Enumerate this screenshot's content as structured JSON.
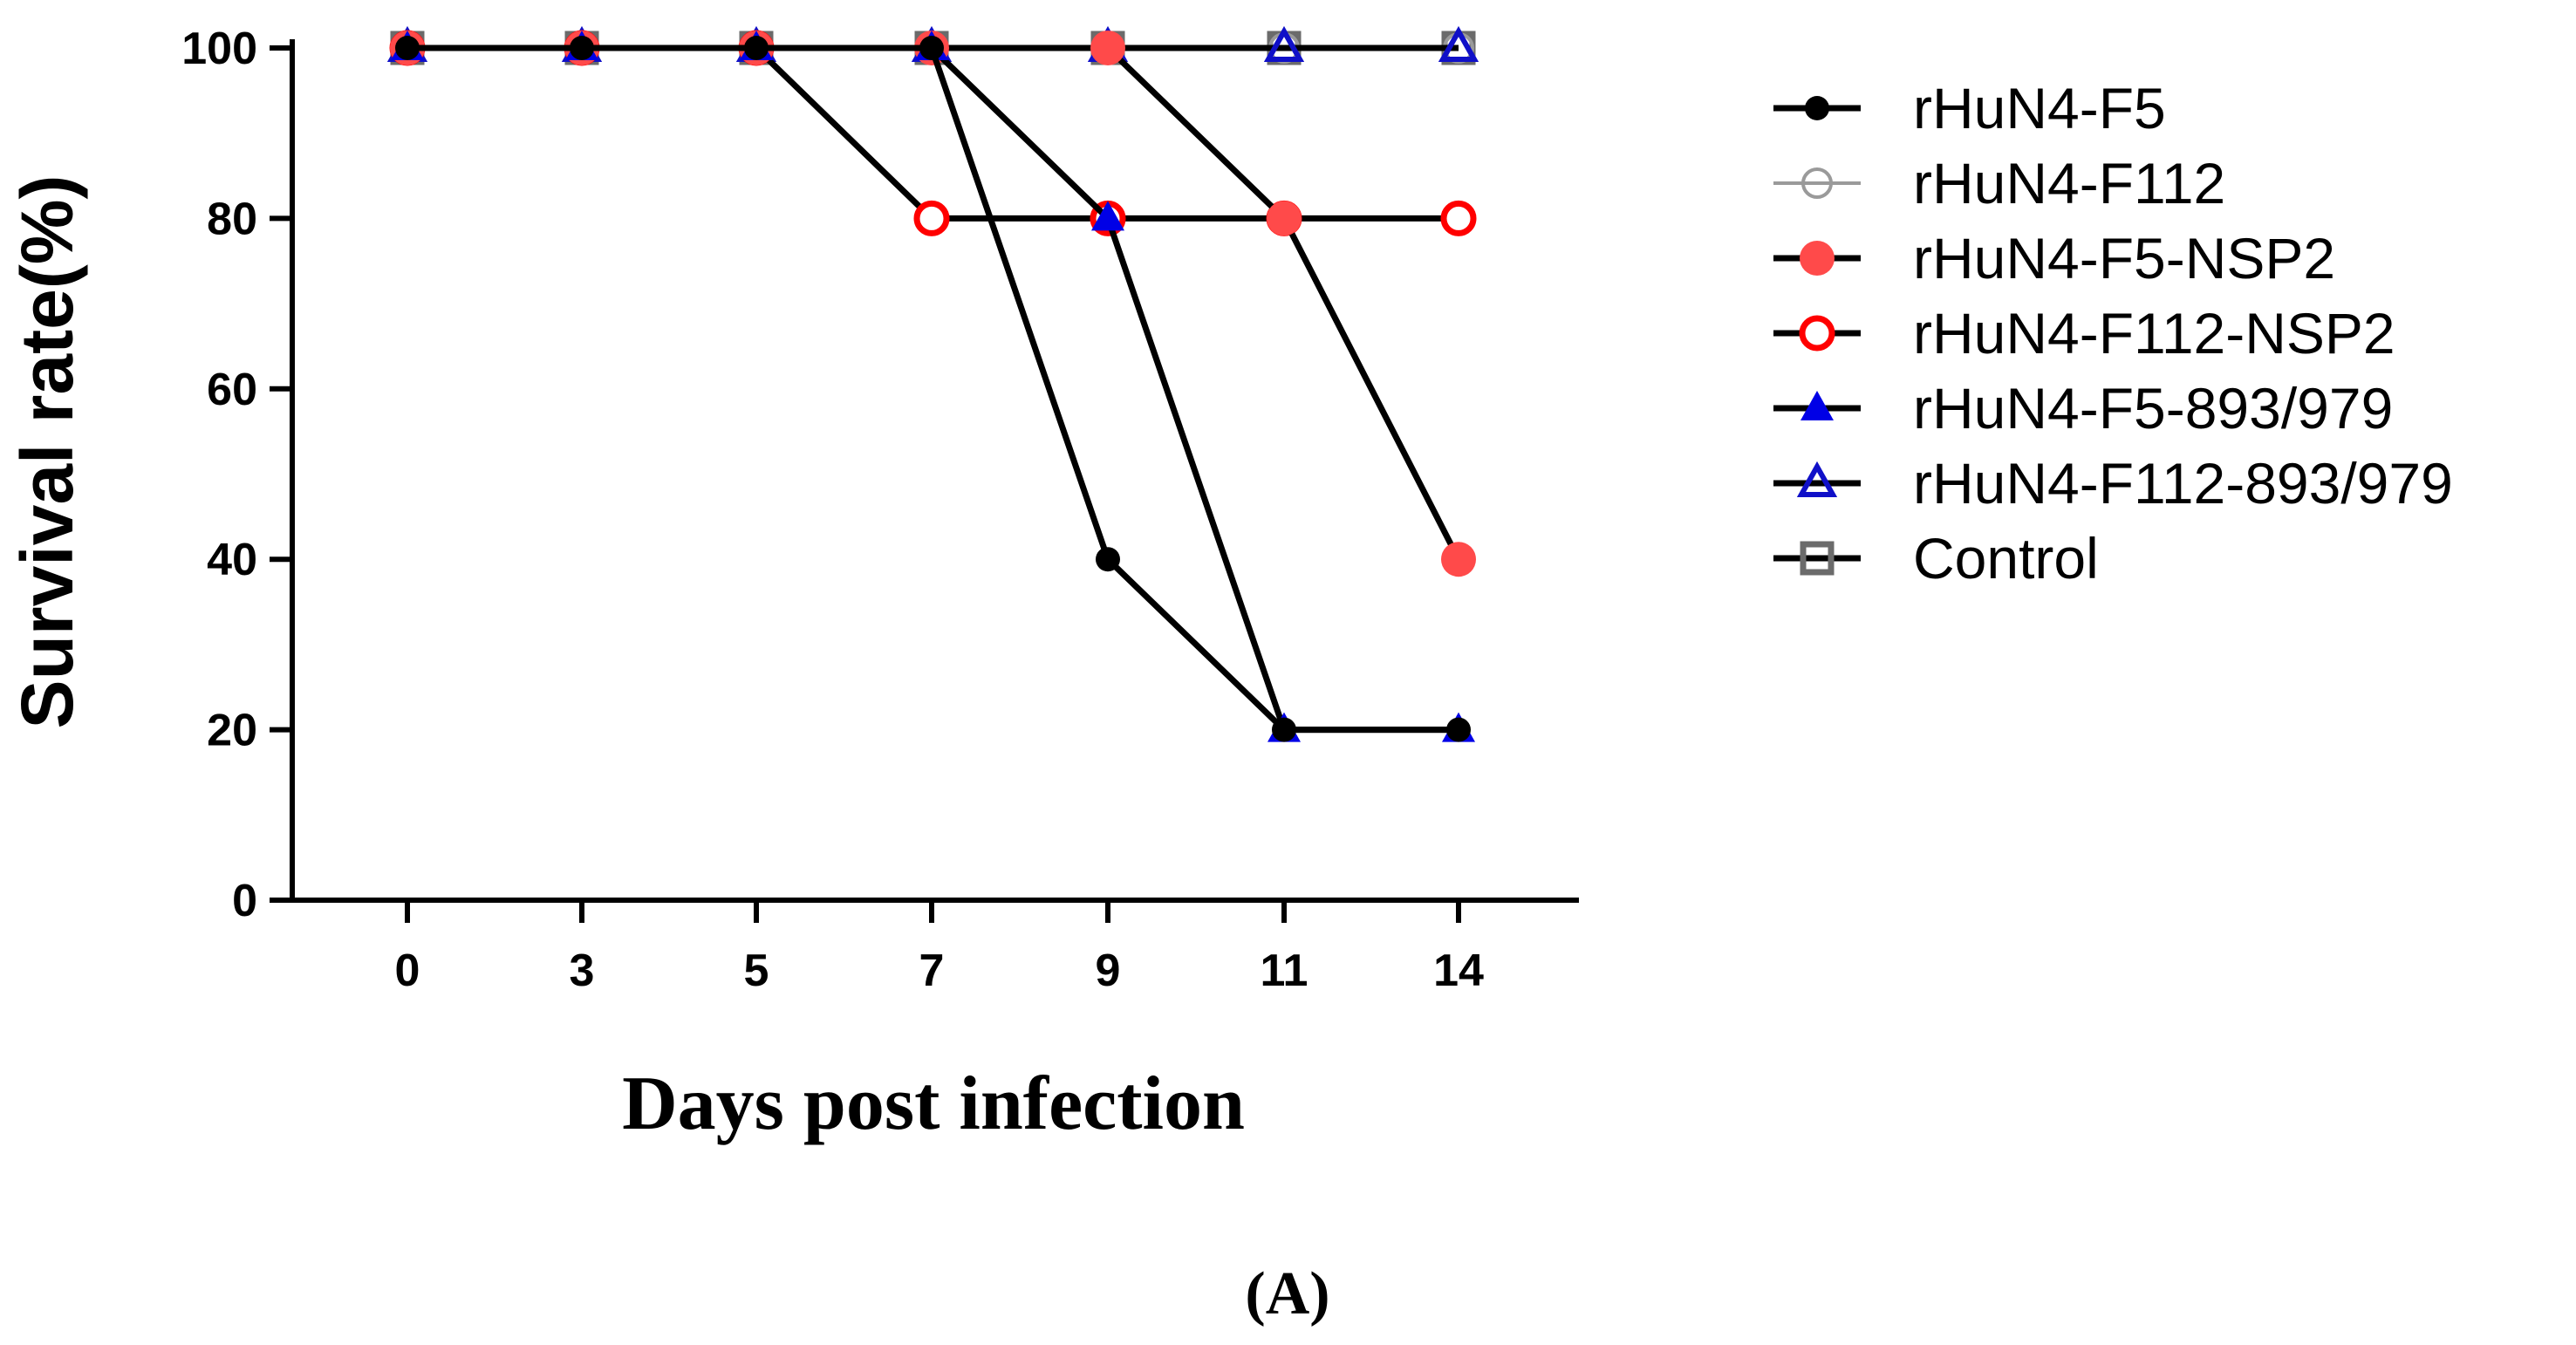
{
  "panel_label": "(A)",
  "chart_data": {
    "type": "line",
    "title": "",
    "xlabel": "Days post infection",
    "ylabel": "Survival rate(%)",
    "categories": [
      "0",
      "3",
      "5",
      "7",
      "9",
      "11",
      "14"
    ],
    "yticks": [
      "0",
      "20",
      "40",
      "60",
      "80",
      "100"
    ],
    "ylim": [
      0,
      100
    ],
    "legend_position": "right",
    "series": [
      {
        "name": "Control",
        "values": [
          100,
          100,
          100,
          100,
          100,
          100,
          100
        ],
        "color": "#6b6b6b",
        "line_color": "#000000",
        "marker": "square-open"
      },
      {
        "name": "rHuN4-F112",
        "values": [
          100,
          100,
          100,
          100,
          100,
          100,
          100
        ],
        "color": "#9a9a9a",
        "line_color": "#000000",
        "marker": "circle-open-thin"
      },
      {
        "name": "rHuN4-F112-893/979",
        "values": [
          100,
          100,
          100,
          100,
          100,
          100,
          100
        ],
        "color": "#1010c8",
        "line_color": "#000000",
        "marker": "triangle-open"
      },
      {
        "name": "rHuN4-F112-NSP2",
        "values": [
          100,
          100,
          100,
          80,
          80,
          80,
          80
        ],
        "color": "#ff0000",
        "line_color": "#000000",
        "marker": "circle-open"
      },
      {
        "name": "rHuN4-F5-NSP2",
        "values": [
          100,
          100,
          100,
          100,
          100,
          80,
          40
        ],
        "color": "#ff4a4a",
        "line_color": "#000000",
        "marker": "circle-filled"
      },
      {
        "name": "rHuN4-F5-893/979",
        "values": [
          100,
          100,
          100,
          100,
          80,
          20,
          20
        ],
        "color": "#0000e6",
        "line_color": "#000000",
        "marker": "triangle-filled"
      },
      {
        "name": "rHuN4-F5",
        "values": [
          100,
          100,
          100,
          100,
          40,
          20,
          20
        ],
        "color": "#000000",
        "line_color": "#000000",
        "marker": "circle-filled-small"
      }
    ],
    "legend_order": [
      "rHuN4-F5",
      "rHuN4-F112",
      "rHuN4-F5-NSP2",
      "rHuN4-F112-NSP2",
      "rHuN4-F5-893/979",
      "rHuN4-F112-893/979",
      "Control"
    ]
  }
}
